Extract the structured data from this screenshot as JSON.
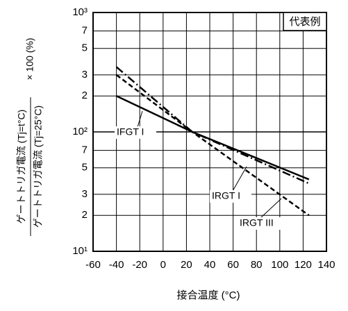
{
  "chart_data": {
    "type": "line",
    "corner_label": "代表例",
    "ylabel_numerator": "ゲートトリガ電流 (Tj=t°C)",
    "ylabel_denominator": "ゲートトリガ電流 (Tj=25°C)",
    "ylabel_factor": "× 100 (%)",
    "xlabel": "接合温度 (°C)",
    "x": [
      -40,
      25,
      125
    ],
    "series": [
      {
        "name": "IFGT I",
        "color": "#000000",
        "dash": "solid",
        "values": [
          200,
          100,
          40
        ]
      },
      {
        "name": "IRGT I",
        "color": "#000000",
        "dash": "dashdot",
        "values": [
          350,
          100,
          37
        ]
      },
      {
        "name": "IRGT III",
        "color": "#000000",
        "dash": "dashed",
        "values": [
          300,
          100,
          20
        ]
      }
    ],
    "xlim": [
      -60,
      140
    ],
    "xticks": [
      -60,
      -40,
      -20,
      0,
      20,
      40,
      60,
      80,
      100,
      120,
      140
    ],
    "ylim": [
      10,
      1000
    ],
    "log_y": true,
    "yticks": [
      {
        "value": 10,
        "label": "10¹"
      },
      2,
      3,
      5,
      7,
      {
        "value": 100,
        "label": "10²"
      },
      2,
      3,
      5,
      7,
      {
        "value": 1000,
        "label": "10³"
      }
    ],
    "grid": true
  }
}
